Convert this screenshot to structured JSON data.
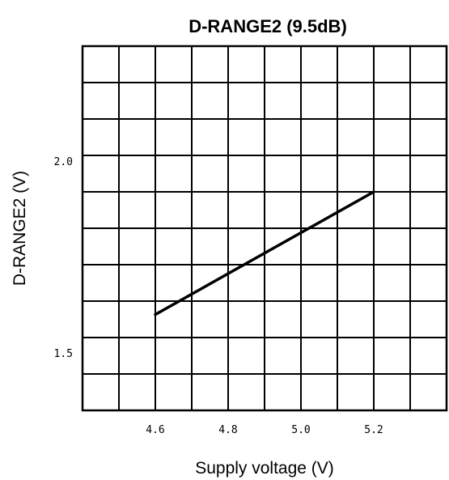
{
  "chart_data": {
    "type": "line",
    "title": "D-RANGE2 (9.5dB)",
    "xlabel": "Supply voltage (V)",
    "ylabel": "D-RANGE2 (V)",
    "xlim": [
      4.4,
      5.4
    ],
    "ylim": [
      1.35,
      2.3
    ],
    "x_ticks": [
      "4.6",
      "4.8",
      "5.0",
      "5.2"
    ],
    "y_ticks": [
      "2.0",
      "1.5"
    ],
    "grid": true,
    "series": [
      {
        "x": [
          4.6,
          5.2
        ],
        "y": [
          1.6,
          1.92
        ]
      }
    ]
  }
}
